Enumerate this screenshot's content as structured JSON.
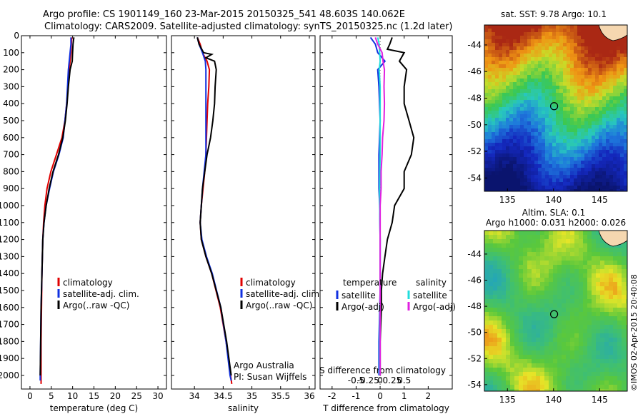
{
  "header": {
    "line1": "Argo profile: CS 1901149_160 23-Mar-2015 20150325_541 48.603S 140.062E",
    "line2": "Climatology: CARS2009. Satellite-adjusted climatology: synTS_20150325.nc (1.2d later)"
  },
  "colors": {
    "climatology": "#e00000",
    "satellite": "#1030e0",
    "argo": "#000000",
    "sat_salinity": "#22dddd",
    "argo_salinity": "#e020e0"
  },
  "chart_data": [
    {
      "type": "line",
      "title": "",
      "xlabel": "temperature (deg C)",
      "ylabel": "",
      "xlim": [
        -2,
        32
      ],
      "ylim": [
        2080,
        0
      ],
      "xticks": [
        "0",
        "5",
        "10",
        "15",
        "20",
        "25",
        "30"
      ],
      "xtick_values": [
        0,
        5,
        10,
        15,
        20,
        25,
        30
      ],
      "yticks": [
        "0",
        "100",
        "200",
        "300",
        "400",
        "500",
        "600",
        "700",
        "800",
        "900",
        "1000",
        "1100",
        "1200",
        "1300",
        "1400",
        "1500",
        "1600",
        "1700",
        "1800",
        "1900",
        "2000"
      ],
      "ytick_values": [
        0,
        100,
        200,
        300,
        400,
        500,
        600,
        700,
        800,
        900,
        1000,
        1100,
        1200,
        1300,
        1400,
        1500,
        1600,
        1700,
        1800,
        1900,
        2000
      ],
      "legend": [
        "climatology",
        "satellite-adj. clim.",
        "Argo(..raw -QC)"
      ],
      "series": [
        {
          "name": "climatology",
          "color": "#e00000",
          "depth": [
            10,
            50,
            100,
            200,
            300,
            400,
            500,
            600,
            700,
            800,
            900,
            1000,
            1100,
            1200,
            1400,
            1600,
            1800,
            2000,
            2050
          ],
          "values": [
            9.8,
            9.7,
            9.6,
            9.2,
            8.9,
            8.6,
            8.2,
            7.5,
            6.2,
            4.9,
            4.0,
            3.5,
            3.2,
            3.0,
            2.8,
            2.7,
            2.6,
            2.6,
            2.6
          ]
        },
        {
          "name": "satellite-adj. clim.",
          "color": "#1030e0",
          "depth": [
            10,
            50,
            100,
            200,
            300,
            400,
            500,
            600,
            700,
            800,
            900,
            1000,
            1100,
            1200,
            1400,
            1600,
            1800,
            2000,
            2030
          ],
          "values": [
            9.6,
            9.6,
            9.4,
            9.0,
            8.8,
            8.6,
            8.2,
            7.8,
            6.8,
            5.5,
            4.6,
            3.8,
            3.3,
            3.0,
            2.8,
            2.6,
            2.5,
            2.4,
            2.4
          ]
        },
        {
          "name": "Argo(..raw -QC)",
          "color": "#000000",
          "depth": [
            10,
            50,
            100,
            150,
            200,
            300,
            400,
            500,
            600,
            700,
            800,
            900,
            1000,
            1100,
            1200,
            1400,
            1600,
            1800,
            2000
          ],
          "values": [
            10.3,
            10.1,
            10.0,
            9.9,
            9.4,
            9.0,
            8.7,
            8.3,
            7.7,
            6.7,
            5.4,
            4.5,
            3.8,
            3.3,
            3.0,
            2.8,
            2.6,
            2.5,
            2.4
          ]
        }
      ]
    },
    {
      "type": "line",
      "title": "",
      "xlabel": "salinity",
      "ylabel": "",
      "xlim": [
        33.6,
        36.1
      ],
      "ylim": [
        2080,
        0
      ],
      "xticks": [
        "34",
        "34.5",
        "35",
        "35.5",
        "36"
      ],
      "xtick_values": [
        34,
        34.5,
        35,
        35.5,
        36
      ],
      "legend": [
        "climatology",
        "satellite-adj. clim.",
        "Argo(..raw -QC)"
      ],
      "annotation": [
        "Argo Australia",
        "PI: Susan Wijffels"
      ],
      "series": [
        {
          "name": "climatology",
          "color": "#e00000",
          "depth": [
            10,
            50,
            100,
            150,
            200,
            300,
            400,
            500,
            600,
            700,
            800,
            900,
            1000,
            1100,
            1200,
            1300,
            1400,
            1600,
            1800,
            2000,
            2050
          ],
          "values": [
            34.05,
            34.1,
            34.14,
            34.22,
            34.26,
            34.25,
            34.23,
            34.22,
            34.21,
            34.2,
            34.18,
            34.15,
            34.12,
            34.1,
            34.12,
            34.2,
            34.3,
            34.45,
            34.55,
            34.63,
            34.65
          ]
        },
        {
          "name": "satellite-adj. clim.",
          "color": "#1030e0",
          "depth": [
            10,
            50,
            100,
            150,
            200,
            300,
            400,
            500,
            600,
            700,
            800,
            900,
            1000,
            1100,
            1200,
            1300,
            1400,
            1600,
            1800,
            2000,
            2030
          ],
          "values": [
            34.05,
            34.08,
            34.14,
            34.19,
            34.2,
            34.2,
            34.2,
            34.2,
            34.2,
            34.2,
            34.17,
            34.14,
            34.12,
            34.1,
            34.13,
            34.21,
            34.31,
            34.46,
            34.55,
            34.62,
            34.64
          ]
        },
        {
          "name": "Argo(..raw -QC)",
          "color": "#000000",
          "depth": [
            10,
            50,
            100,
            110,
            130,
            150,
            200,
            300,
            400,
            500,
            600,
            650,
            700,
            800,
            900,
            1000,
            1100,
            1200,
            1300,
            1400,
            1600,
            1800,
            2000
          ],
          "values": [
            34.05,
            34.08,
            34.16,
            34.3,
            34.2,
            34.35,
            34.38,
            34.36,
            34.35,
            34.32,
            34.28,
            34.25,
            34.22,
            34.18,
            34.14,
            34.12,
            34.1,
            34.12,
            34.2,
            34.3,
            34.46,
            34.56,
            34.64
          ]
        }
      ]
    },
    {
      "type": "line",
      "title": "",
      "xlabel": "T difference from climatology",
      "xlabel2": "S difference from climatology",
      "ylabel": "",
      "xlim": [
        -2.5,
        3
      ],
      "ylim": [
        2080,
        0
      ],
      "xticks": [
        "-2",
        "-1",
        "0",
        "1",
        "2"
      ],
      "xtick_values": [
        -2,
        -1,
        0,
        1,
        2
      ],
      "xticks2": [
        "-0.5",
        "-0.25",
        "0",
        "0.25",
        "0.5"
      ],
      "legend_headers": [
        "temperature",
        "salinity"
      ],
      "legend": [
        "satellite",
        "Argo(-adj)",
        "satellite",
        "Argo(-adj)"
      ],
      "series": [
        {
          "name": "satellite",
          "group": "temperature",
          "color": "#1030e0",
          "depth": [
            10,
            50,
            100,
            150,
            200,
            300,
            500,
            700,
            900,
            1000,
            1200,
            1500,
            1800,
            2000
          ],
          "values": [
            -0.4,
            -0.2,
            -0.1,
            0.2,
            -0.1,
            -0.05,
            0,
            -0.05,
            -0.05,
            -0.02,
            0,
            0,
            -0.05,
            -0.05
          ]
        },
        {
          "name": "Argo(-adj)",
          "group": "temperature",
          "color": "#000000",
          "depth": [
            10,
            50,
            80,
            100,
            150,
            200,
            300,
            400,
            500,
            600,
            700,
            800,
            900,
            1000,
            1100,
            1200,
            1300,
            1400,
            1500,
            1600,
            1800,
            2000
          ],
          "values": [
            0.5,
            0.4,
            0.3,
            1.0,
            0.8,
            1.1,
            1.0,
            1.0,
            1.2,
            1.4,
            1.3,
            1.0,
            1.0,
            0.6,
            0.5,
            0.3,
            0.2,
            0.1,
            0.05,
            0.05,
            0.0,
            0.0
          ]
        },
        {
          "name": "satellite",
          "group": "salinity",
          "color": "#22dddd",
          "depth": [
            10,
            50,
            100,
            150,
            200,
            300,
            500,
            700,
            900,
            1000,
            1200,
            1500,
            1800,
            2000
          ],
          "values": [
            -0.05,
            -0.02,
            -0.01,
            0.0,
            -0.02,
            0,
            0,
            0,
            -0.01,
            -0.01,
            0,
            0,
            -0.01,
            -0.01
          ]
        },
        {
          "name": "Argo(-adj)",
          "group": "salinity",
          "color": "#e020e0",
          "depth": [
            10,
            50,
            100,
            150,
            200,
            300,
            400,
            500,
            600,
            700,
            800,
            900,
            1000,
            1100,
            1200,
            1400,
            1600,
            1800,
            2000
          ],
          "values": [
            -0.1,
            -0.05,
            0.04,
            0.06,
            0.09,
            0.08,
            0.09,
            0.08,
            0.05,
            0.04,
            0.02,
            0.02,
            0.0,
            0,
            0,
            0,
            0,
            0,
            0
          ]
        }
      ]
    },
    {
      "type": "heatmap",
      "title": "sat. SST: 9.78 Argo: 10.1",
      "xlim": [
        132.5,
        148
      ],
      "ylim": [
        -55,
        -42.5
      ],
      "xticks": [
        "135",
        "140",
        "145"
      ],
      "xtick_values": [
        135,
        140,
        145
      ],
      "yticks": [
        "-44",
        "-46",
        "-48",
        "-50",
        "-52",
        "-54"
      ],
      "ytick_values": [
        -44,
        -46,
        -48,
        -50,
        -52,
        -54
      ],
      "marker": {
        "lon": 140.062,
        "lat": -48.603
      }
    },
    {
      "type": "heatmap",
      "title": "Altim. SLA: 0.1",
      "subtitle": "Argo h1000: 0.031 h2000: 0.026",
      "xlim": [
        132.5,
        148
      ],
      "ylim": [
        -54.5,
        -42.2
      ],
      "xticks": [
        "135",
        "140",
        "145"
      ],
      "xtick_values": [
        135,
        140,
        145
      ],
      "yticks": [
        "-44",
        "-46",
        "-48",
        "-50",
        "-52",
        "-54"
      ],
      "ytick_values": [
        -44,
        -46,
        -48,
        -50,
        -52,
        -54
      ],
      "marker": {
        "lon": 140.062,
        "lat": -48.603
      }
    }
  ],
  "footer": {
    "stamp": "©IMOS 02-Apr-2015 20:40:08"
  }
}
